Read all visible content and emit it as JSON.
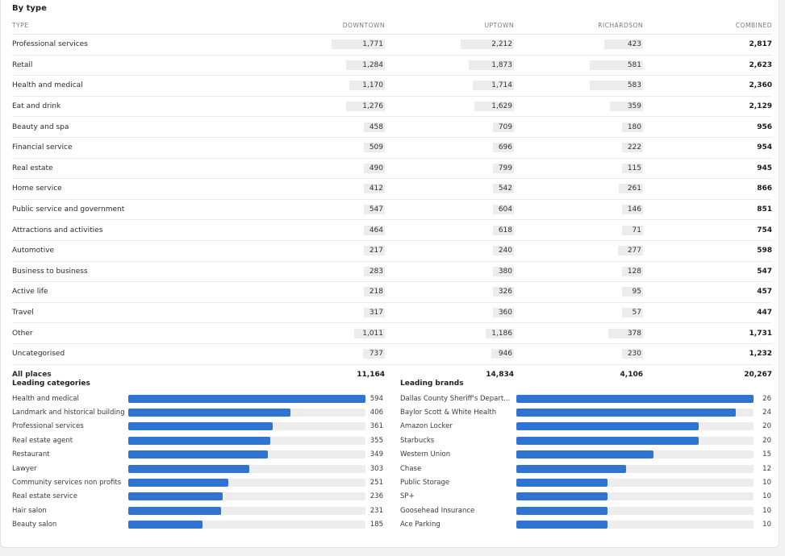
{
  "by_type": {
    "title": "By type",
    "columns": [
      "TYPE",
      "DOWNTOWN",
      "UPTOWN",
      "RICHARDSON",
      "COMBINED"
    ],
    "rows": [
      {
        "type": "Professional services",
        "downtown": "1,771",
        "uptown": "2,212",
        "richardson": "423",
        "combined": "2,817"
      },
      {
        "type": "Retail",
        "downtown": "1,284",
        "uptown": "1,873",
        "richardson": "581",
        "combined": "2,623"
      },
      {
        "type": "Health and medical",
        "downtown": "1,170",
        "uptown": "1,714",
        "richardson": "583",
        "combined": "2,360"
      },
      {
        "type": "Eat and drink",
        "downtown": "1,276",
        "uptown": "1,629",
        "richardson": "359",
        "combined": "2,129"
      },
      {
        "type": "Beauty and spa",
        "downtown": "458",
        "uptown": "709",
        "richardson": "180",
        "combined": "956"
      },
      {
        "type": "Financial service",
        "downtown": "509",
        "uptown": "696",
        "richardson": "222",
        "combined": "954"
      },
      {
        "type": "Real estate",
        "downtown": "490",
        "uptown": "799",
        "richardson": "115",
        "combined": "945"
      },
      {
        "type": "Home service",
        "downtown": "412",
        "uptown": "542",
        "richardson": "261",
        "combined": "866"
      },
      {
        "type": "Public service and government",
        "downtown": "547",
        "uptown": "604",
        "richardson": "146",
        "combined": "851"
      },
      {
        "type": "Attractions and activities",
        "downtown": "464",
        "uptown": "618",
        "richardson": "71",
        "combined": "754"
      },
      {
        "type": "Automotive",
        "downtown": "217",
        "uptown": "240",
        "richardson": "277",
        "combined": "598"
      },
      {
        "type": "Business to business",
        "downtown": "283",
        "uptown": "380",
        "richardson": "128",
        "combined": "547"
      },
      {
        "type": "Active life",
        "downtown": "218",
        "uptown": "326",
        "richardson": "95",
        "combined": "457"
      },
      {
        "type": "Travel",
        "downtown": "317",
        "uptown": "360",
        "richardson": "57",
        "combined": "447"
      },
      {
        "type": "Other",
        "downtown": "1,011",
        "uptown": "1,186",
        "richardson": "378",
        "combined": "1,731"
      },
      {
        "type": "Uncategorised",
        "downtown": "737",
        "uptown": "946",
        "richardson": "230",
        "combined": "1,232"
      }
    ],
    "total": {
      "type": "All places",
      "downtown": "11,164",
      "uptown": "14,834",
      "richardson": "4,106",
      "combined": "20,267"
    }
  },
  "leading_categories": {
    "title": "Leading categories",
    "items": [
      {
        "label": "Health and medical",
        "value": 594
      },
      {
        "label": "Landmark and historical building",
        "value": 406
      },
      {
        "label": "Professional services",
        "value": 361
      },
      {
        "label": "Real estate agent",
        "value": 355
      },
      {
        "label": "Restaurant",
        "value": 349
      },
      {
        "label": "Lawyer",
        "value": 303
      },
      {
        "label": "Community services non profits",
        "value": 251
      },
      {
        "label": "Real estate service",
        "value": 236
      },
      {
        "label": "Hair salon",
        "value": 231
      },
      {
        "label": "Beauty salon",
        "value": 185
      }
    ]
  },
  "leading_brands": {
    "title": "Leading brands",
    "items": [
      {
        "label": "Dallas County Sheriff's Depart...",
        "value": 26
      },
      {
        "label": "Baylor Scott & White Health",
        "value": 24
      },
      {
        "label": "Amazon Locker",
        "value": 20
      },
      {
        "label": "Starbucks",
        "value": 20
      },
      {
        "label": "Western Union",
        "value": 15
      },
      {
        "label": "Chase",
        "value": 12
      },
      {
        "label": "Public Storage",
        "value": 10
      },
      {
        "label": "SP+",
        "value": 10
      },
      {
        "label": "Goosehead Insurance",
        "value": 10
      },
      {
        "label": "Ace Parking",
        "value": 10
      }
    ]
  },
  "colors": {
    "bar": "#2f74d0",
    "track": "#ededed",
    "cell_bar": "#ececec"
  }
}
